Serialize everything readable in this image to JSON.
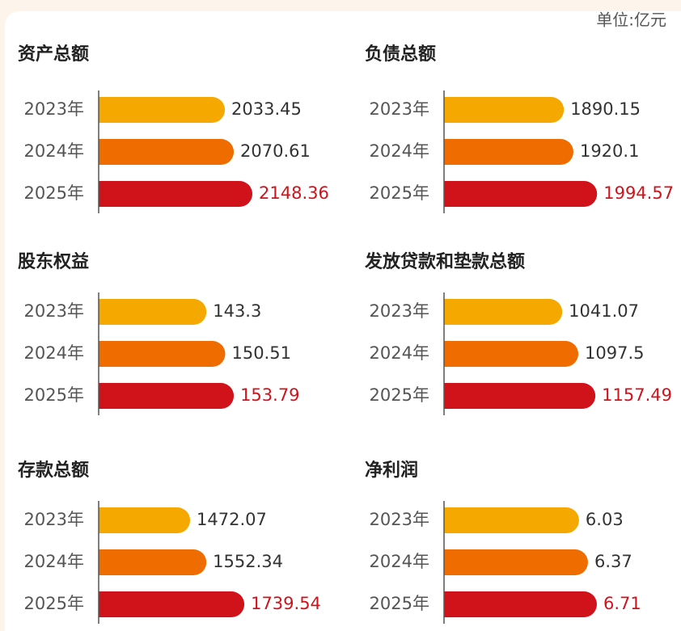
{
  "unit": "单位:亿元",
  "chart_data": [
    {
      "type": "bar",
      "orientation": "horizontal",
      "title": "资产总额",
      "categories": [
        "2023年",
        "2024年",
        "2025年"
      ],
      "values": [
        2033.45,
        2070.61,
        2148.36
      ],
      "xlim": [
        1506,
        2182
      ],
      "colors": [
        "#f5a800",
        "#ef6c00",
        "#d0121b"
      ],
      "label_colors": [
        "#333333",
        "#333333",
        "#d0121b"
      ]
    },
    {
      "type": "bar",
      "orientation": "horizontal",
      "title": "负债总额",
      "categories": [
        "2023年",
        "2024年",
        "2025年"
      ],
      "values": [
        1890.15,
        1920.1,
        1994.57
      ],
      "xlim": [
        1513,
        2022
      ],
      "colors": [
        "#f5a800",
        "#ef6c00",
        "#d0121b"
      ],
      "label_colors": [
        "#333333",
        "#333333",
        "#d0121b"
      ]
    },
    {
      "type": "bar",
      "orientation": "horizontal",
      "title": "股东权益",
      "categories": [
        "2023年",
        "2024年",
        "2025年"
      ],
      "values": [
        143.3,
        150.51,
        153.79
      ],
      "xlim": [
        102,
        164
      ],
      "colors": [
        "#f5a800",
        "#ef6c00",
        "#d0121b"
      ],
      "label_colors": [
        "#333333",
        "#333333",
        "#d0121b"
      ]
    },
    {
      "type": "bar",
      "orientation": "horizontal",
      "title": "发放贷款和垫款总额",
      "categories": [
        "2023年",
        "2024年",
        "2025年"
      ],
      "values": [
        1041.07,
        1097.5,
        1157.49
      ],
      "xlim": [
        626,
        1194
      ],
      "colors": [
        "#f5a800",
        "#ef6c00",
        "#d0121b"
      ],
      "label_colors": [
        "#333333",
        "#333333",
        "#d0121b"
      ]
    },
    {
      "type": "bar",
      "orientation": "horizontal",
      "title": "存款总额",
      "categories": [
        "2023年",
        "2024年",
        "2025年"
      ],
      "values": [
        1472.07,
        1552.34,
        1739.54
      ],
      "xlim": [
        1021,
        1819
      ],
      "colors": [
        "#f5a800",
        "#ef6c00",
        "#d0121b"
      ],
      "label_colors": [
        "#333333",
        "#333333",
        "#d0121b"
      ]
    },
    {
      "type": "bar",
      "orientation": "horizontal",
      "title": "净利润",
      "categories": [
        "2023年",
        "2024年",
        "2025年"
      ],
      "values": [
        6.03,
        6.37,
        6.71
      ],
      "xlim": [
        0.88,
        7.05
      ],
      "colors": [
        "#f5a800",
        "#ef6c00",
        "#d0121b"
      ],
      "label_colors": [
        "#333333",
        "#333333",
        "#d0121b"
      ]
    }
  ]
}
